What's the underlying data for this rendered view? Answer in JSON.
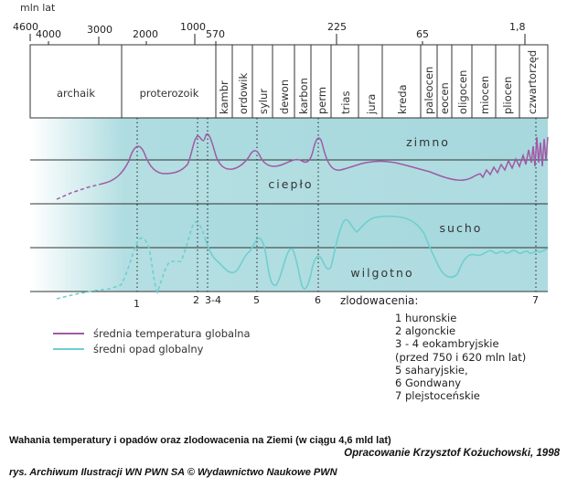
{
  "figure": {
    "top_axis": {
      "unit_label": "mln lat",
      "ticks": [
        "4600",
        "4000",
        "3000",
        "2000",
        "1000",
        "570",
        "225",
        "65",
        "1,8"
      ]
    },
    "periods": [
      "archaik",
      "proterozoik",
      "kambr",
      "ordowik",
      "sylur",
      "dewon",
      "karbon",
      "perm",
      "trias",
      "jura",
      "kreda",
      "paleocen",
      "eocen",
      "oligocen",
      "miocen",
      "pliocen",
      "czwartorzęd"
    ],
    "band_labels": {
      "cold": "zimno",
      "warm": "ciepło",
      "dry": "sucho",
      "wet": "wilgotno"
    },
    "glaciation_markers": [
      "1",
      "2",
      "3-4",
      "5",
      "6",
      "7"
    ],
    "glaciation_title": "zlodowacenia:",
    "glaciation_list": [
      "1 huronskie",
      "2 algonckie",
      "3 - 4 eokambryjskie",
      "(przed 750 i 620 mln lat)",
      "5 saharyjskie,",
      "6 Gondwany",
      "7 plejstoceńskie"
    ],
    "legend": [
      {
        "label": "średnia temperatura globalna",
        "color": "#a05aa5"
      },
      {
        "label": "średni opad globalny",
        "color": "#6fcfcf"
      }
    ],
    "colors": {
      "band_fill": "#aedce0",
      "band_fill_dark": "#9cd3d8",
      "temperature": "#a05aa5",
      "precipitation": "#6fcfcf"
    }
  },
  "caption": {
    "title": "Wahania temperatury i opadów oraz zlodowacenia na Ziemi (w ciągu 4,6 mld lat)",
    "author": "Opracowanie Krzysztof Kożuchowski, 1998",
    "credit": "rys. Archiwum Ilustracji WN PWN SA © Wydawnictwo Naukowe PWN"
  }
}
